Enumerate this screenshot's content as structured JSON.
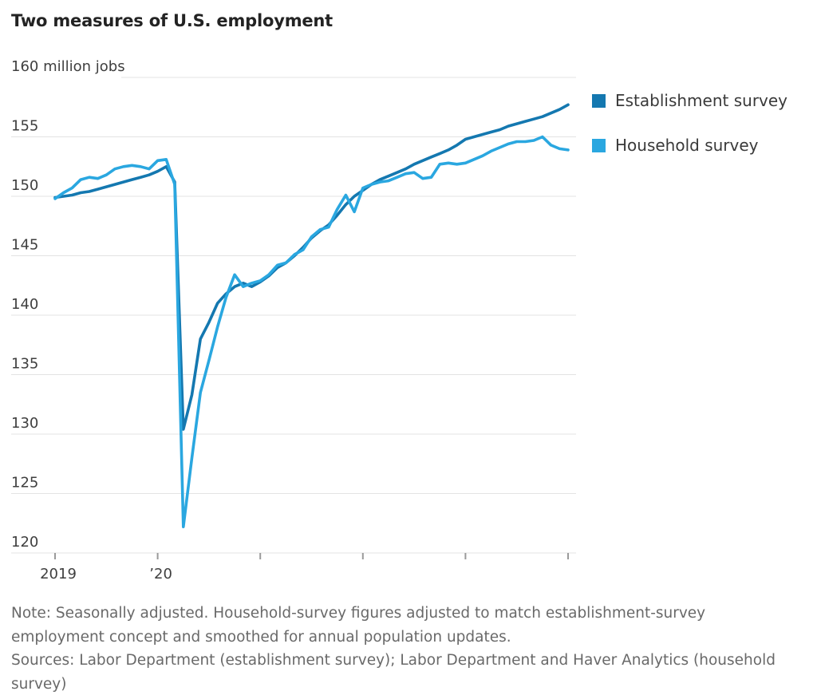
{
  "title": "Two measures of U.S. employment",
  "chart_data": {
    "type": "line",
    "title": "Two measures of U.S. employment",
    "unit_label": "million jobs",
    "x_range": "Jan 2019 to Jan 2024, monthly",
    "ylim": [
      120,
      160
    ],
    "yticks": [
      160,
      155,
      150,
      145,
      140,
      135,
      130,
      125,
      120
    ],
    "grid": true,
    "legend_position": "right",
    "x_ticks": [
      {
        "month_index": 0,
        "label": "2019"
      },
      {
        "month_index": 12,
        "label": "’20"
      },
      {
        "month_index": 24,
        "label": ""
      },
      {
        "month_index": 36,
        "label": ""
      },
      {
        "month_index": 48,
        "label": ""
      },
      {
        "month_index": 60,
        "label": ""
      }
    ],
    "series": [
      {
        "name": "Establishment survey",
        "color": "#1478b0",
        "values": [
          149.9,
          150.0,
          150.1,
          150.3,
          150.4,
          150.6,
          150.8,
          151.0,
          151.2,
          151.4,
          151.6,
          151.8,
          152.1,
          152.5,
          151.2,
          130.4,
          133.3,
          138.0,
          139.4,
          141.0,
          141.8,
          142.4,
          142.7,
          142.4,
          142.8,
          143.3,
          144.0,
          144.4,
          145.0,
          145.7,
          146.5,
          147.1,
          147.6,
          148.4,
          149.3,
          150.0,
          150.5,
          151.0,
          151.4,
          151.7,
          152.0,
          152.3,
          152.7,
          153.0,
          153.3,
          153.6,
          153.9,
          154.3,
          154.8,
          155.0,
          155.2,
          155.4,
          155.6,
          155.9,
          156.1,
          156.3,
          156.5,
          156.7,
          157.0,
          157.3,
          157.7
        ]
      },
      {
        "name": "Household survey",
        "color": "#2aa7e0",
        "values": [
          149.8,
          150.3,
          150.7,
          151.4,
          151.6,
          151.5,
          151.8,
          152.3,
          152.5,
          152.6,
          152.5,
          152.3,
          153.0,
          153.1,
          151.0,
          122.2,
          128.0,
          133.5,
          136.2,
          139.0,
          141.5,
          143.4,
          142.4,
          142.7,
          142.9,
          143.4,
          144.2,
          144.4,
          145.1,
          145.5,
          146.6,
          147.2,
          147.4,
          148.9,
          150.1,
          148.7,
          150.7,
          151.0,
          151.2,
          151.3,
          151.6,
          151.9,
          152.0,
          151.5,
          151.6,
          152.7,
          152.8,
          152.7,
          152.8,
          153.1,
          153.4,
          153.8,
          154.1,
          154.4,
          154.6,
          154.6,
          154.7,
          155.0,
          154.3,
          154.0,
          153.9
        ]
      }
    ]
  },
  "notes": {
    "note": "Note: Seasonally adjusted. Household-survey figures adjusted to match establishment-survey employment concept and smoothed for annual population updates.",
    "sources": "Sources: Labor Department (establishment survey); Labor Department and Haver Analytics (household survey)"
  }
}
